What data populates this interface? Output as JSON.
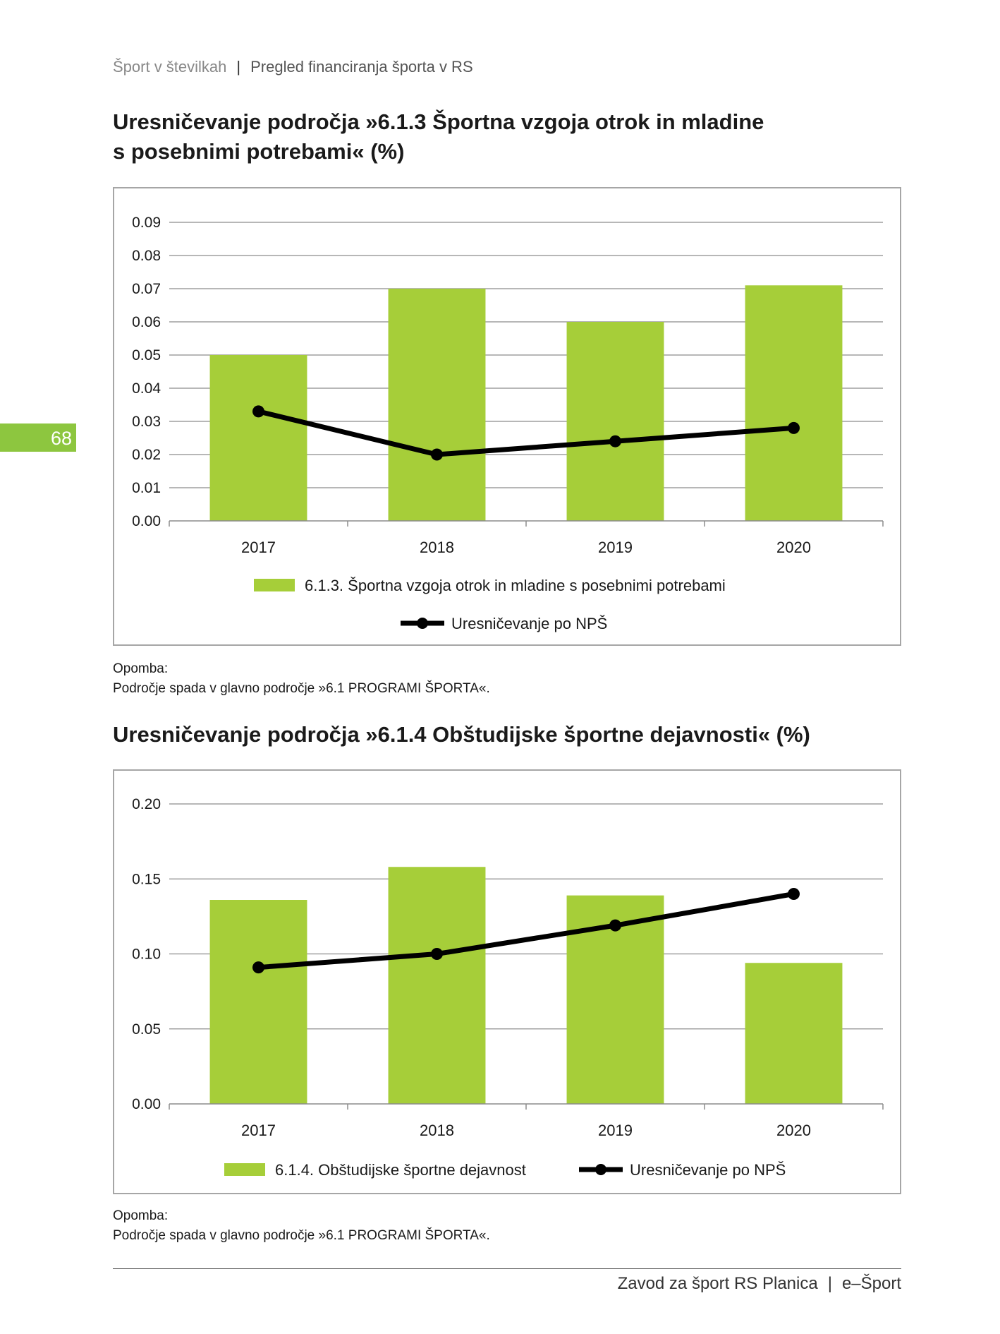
{
  "header": {
    "left": "Šport v številkah",
    "separator": "|",
    "right": "Pregled financiranja športa v RS"
  },
  "page_number": "68",
  "charts": [
    {
      "title_line1": "Uresničevanje področja »6.1.3 Športna vzgoja otrok in mladine",
      "title_line2": "s posebnimi potrebami« (%)",
      "note_label": "Opomba:",
      "note_text": "Področje spada v glavno področje »6.1 PROGRAMI ŠPORTA«."
    },
    {
      "title_line1": "Uresničevanje področja »6.1.4 Obštudijske športne dejavnosti« (%)",
      "title_line2": "",
      "note_label": "Opomba:",
      "note_text": "Področje spada v glavno področje »6.1 PROGRAMI ŠPORTA«."
    }
  ],
  "chart_data": [
    {
      "type": "bar",
      "title": "Uresničevanje področja »6.1.3 Športna vzgoja otrok in mladine s posebnimi potrebami« (%)",
      "categories": [
        "2017",
        "2018",
        "2019",
        "2020"
      ],
      "series": [
        {
          "name": "6.1.3. Športna vzgoja otrok in mladine s posebnimi potrebami",
          "kind": "bar",
          "color": "#a6ce39",
          "values": [
            0.05,
            0.07,
            0.06,
            0.071
          ]
        },
        {
          "name": "Uresničevanje po NPŠ",
          "kind": "line",
          "color": "#000000",
          "values": [
            0.033,
            0.02,
            0.024,
            0.028
          ]
        }
      ],
      "yticks": [
        "0.00",
        "0.01",
        "0.02",
        "0.03",
        "0.04",
        "0.05",
        "0.06",
        "0.07",
        "0.08",
        "0.09"
      ],
      "ylim": [
        0,
        0.09
      ],
      "grid": true,
      "legend_placement": "bottom-stacked"
    },
    {
      "type": "bar",
      "title": "Uresničevanje področja »6.1.4 Obštudijske športne dejavnosti« (%)",
      "categories": [
        "2017",
        "2018",
        "2019",
        "2020"
      ],
      "series": [
        {
          "name": "6.1.4. Obštudijske športne dejavnost",
          "kind": "bar",
          "color": "#a6ce39",
          "values": [
            0.136,
            0.158,
            0.139,
            0.094
          ]
        },
        {
          "name": "Uresničevanje po NPŠ",
          "kind": "line",
          "color": "#000000",
          "values": [
            0.091,
            0.1,
            0.119,
            0.14
          ]
        }
      ],
      "yticks": [
        "0.00",
        "0.05",
        "0.10",
        "0.15",
        "0.20"
      ],
      "ylim": [
        0,
        0.2
      ],
      "grid": true,
      "legend_placement": "bottom-row"
    }
  ],
  "footer": {
    "left": "Zavod za šport RS Planica",
    "separator": "|",
    "right": "e–Šport"
  }
}
